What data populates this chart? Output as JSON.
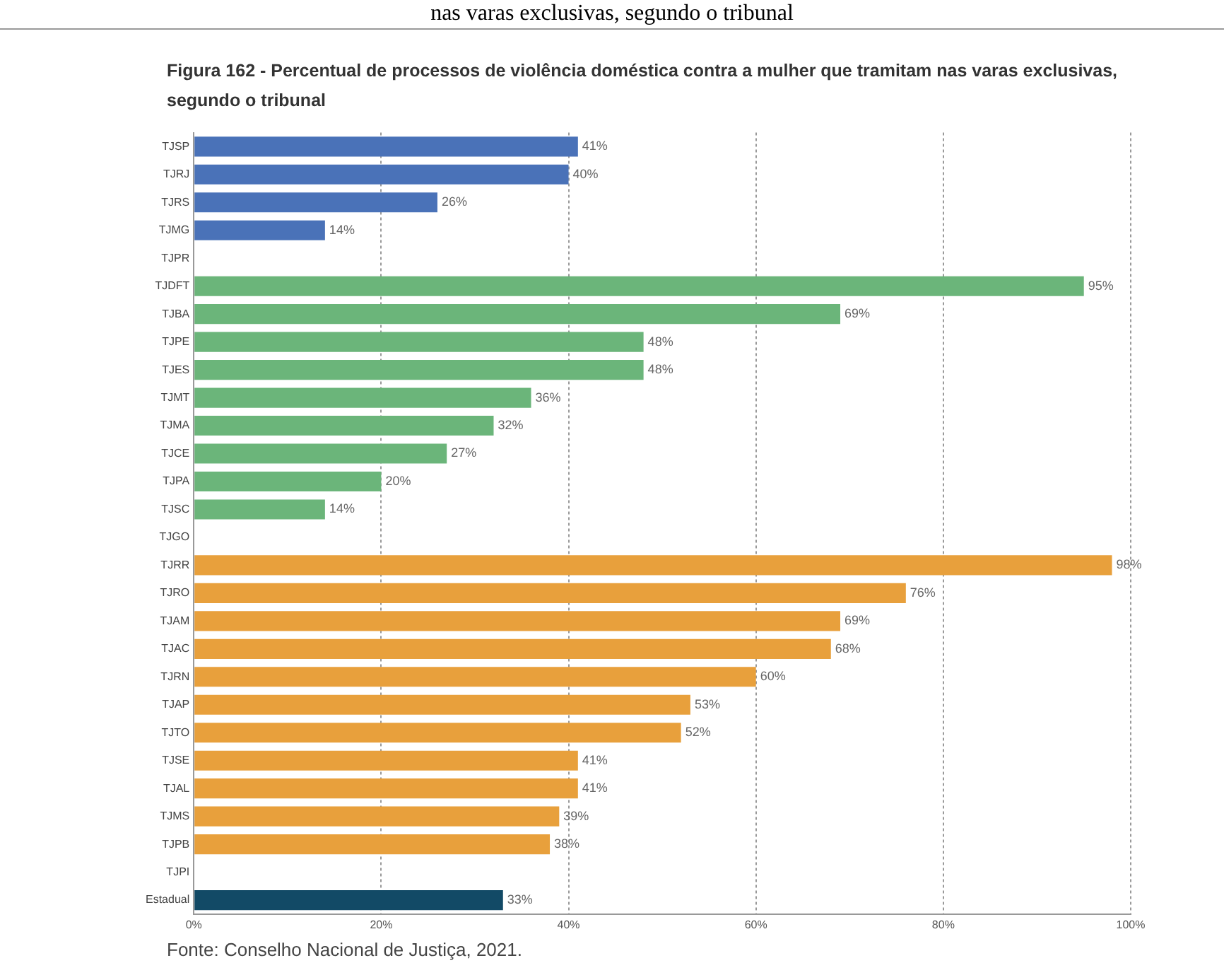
{
  "chart_data": {
    "type": "bar",
    "orientation": "horizontal",
    "title": "Figura 162 - Percentual de processos de violência doméstica contra a mulher que tramitam nas varas exclusivas, segundo o tribunal",
    "annotations": [
      "nas varas exclusivas, segundo o tribunal",
      "Fonte: Conselho Nacional de Justiça, 2021."
    ],
    "categories": [
      "TJSP",
      "TJRJ",
      "TJRS",
      "TJMG",
      "TJPR",
      "TJDFT",
      "TJBA",
      "TJPE",
      "TJES",
      "TJMT",
      "TJMA",
      "TJCE",
      "TJPA",
      "TJSC",
      "TJGO",
      "TJRR",
      "TJRO",
      "TJAM",
      "TJAC",
      "TJRN",
      "TJAP",
      "TJTO",
      "TJSE",
      "TJAL",
      "TJMS",
      "TJPB",
      "TJPI",
      "Estadual"
    ],
    "values": [
      41,
      40,
      26,
      14,
      null,
      95,
      69,
      48,
      48,
      36,
      32,
      27,
      20,
      14,
      null,
      98,
      76,
      69,
      68,
      60,
      53,
      52,
      41,
      41,
      39,
      38,
      null,
      33
    ],
    "value_labels": [
      "41%",
      "40%",
      "26%",
      "14%",
      null,
      "95%",
      "69%",
      "48%",
      "48%",
      "36%",
      "32%",
      "27%",
      "20%",
      "14%",
      null,
      "98%",
      "76%",
      "69%",
      "68%",
      "60%",
      "53%",
      "52%",
      "41%",
      "41%",
      "39%",
      "38%",
      null,
      "33%"
    ],
    "colors": [
      "#4a72b8",
      "#4a72b8",
      "#4a72b8",
      "#4a72b8",
      "#4a72b8",
      "#6bb57a",
      "#6bb57a",
      "#6bb57a",
      "#6bb57a",
      "#6bb57a",
      "#6bb57a",
      "#6bb57a",
      "#6bb57a",
      "#6bb57a",
      "#6bb57a",
      "#e8a03c",
      "#e8a03c",
      "#e8a03c",
      "#e8a03c",
      "#e8a03c",
      "#e8a03c",
      "#e8a03c",
      "#e8a03c",
      "#e8a03c",
      "#e8a03c",
      "#e8a03c",
      "#e8a03c",
      "#124a66"
    ],
    "xlim": [
      0,
      100
    ],
    "xticks": [
      {
        "value": 0,
        "label": "0%"
      },
      {
        "value": 20,
        "label": "20%"
      },
      {
        "value": 40,
        "label": "40%"
      },
      {
        "value": 60,
        "label": "60%"
      },
      {
        "value": 80,
        "label": "80%"
      },
      {
        "value": 100,
        "label": "100%"
      }
    ],
    "grid": "x",
    "legend": false
  }
}
